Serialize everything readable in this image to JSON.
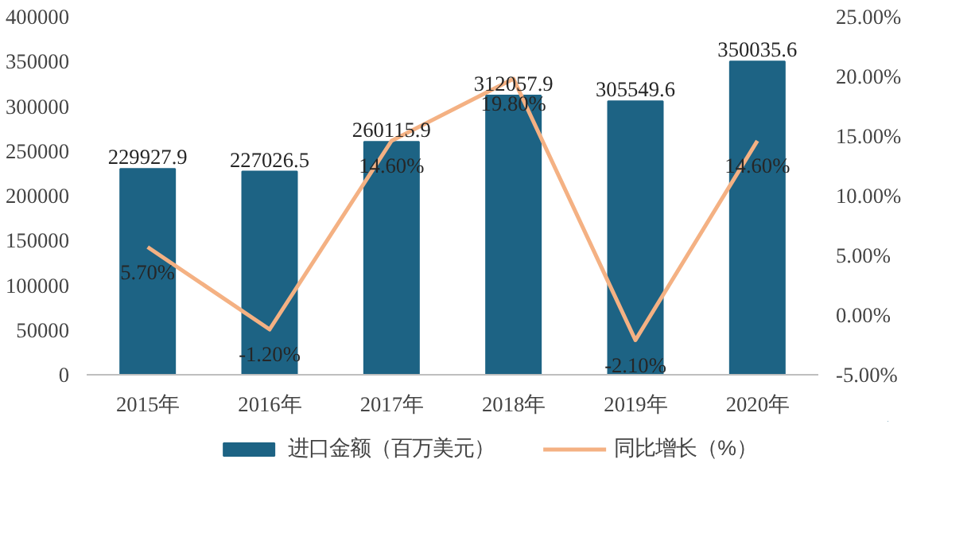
{
  "chart_data": {
    "type": "bar",
    "categories": [
      "2015年",
      "2016年",
      "2017年",
      "2018年",
      "2019年",
      "2020年"
    ],
    "series": [
      {
        "name": "进口金额（百万美元）",
        "type": "bar",
        "color": "#1d6384",
        "values": [
          229927.9,
          227026.5,
          260115.9,
          312057.9,
          305549.6,
          350035.6
        ],
        "data_labels": true
      },
      {
        "name": "同比增长（%）",
        "type": "line",
        "axis": "y2",
        "color": "#f4b183",
        "values": [
          5.7,
          -1.2,
          14.6,
          19.8,
          -2.1,
          14.6
        ],
        "value_labels": [
          "5.70%",
          "-1.20%",
          "14.60%",
          "19.80%",
          "-2.10%",
          "14.60%"
        ]
      }
    ],
    "ylim": [
      0,
      400000
    ],
    "yticks": [
      0,
      50000,
      100000,
      150000,
      200000,
      250000,
      300000,
      350000,
      400000
    ],
    "y2lim": [
      -5,
      25
    ],
    "y2ticks": [
      {
        "value": -5,
        "label": "-5.00%"
      },
      {
        "value": 0,
        "label": "0.00%"
      },
      {
        "value": 5,
        "label": "5.00%"
      },
      {
        "value": 10,
        "label": "10.00%"
      },
      {
        "value": 15,
        "label": "15.00%"
      },
      {
        "value": 20,
        "label": "20.00%"
      },
      {
        "value": 25,
        "label": "25.00%"
      }
    ],
    "grid": false,
    "legend": "bottom"
  }
}
